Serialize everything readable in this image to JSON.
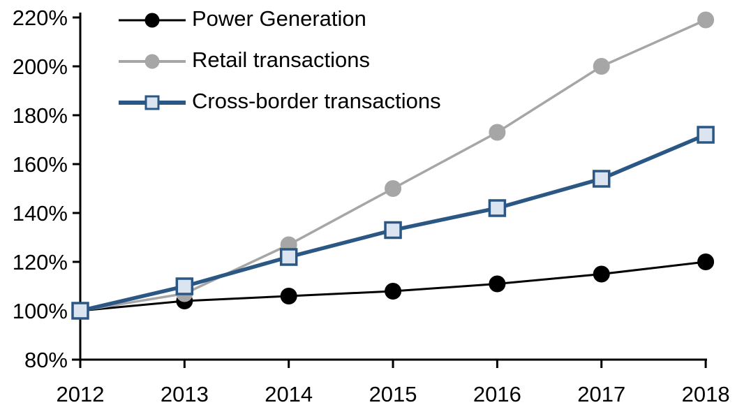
{
  "chart_data": {
    "type": "line",
    "title": "",
    "xlabel": "",
    "ylabel": "",
    "x": [
      2012,
      2013,
      2014,
      2015,
      2016,
      2017,
      2018
    ],
    "x_tick_labels": [
      "2012",
      "2013",
      "2014",
      "2015",
      "2016",
      "2017",
      "2018"
    ],
    "y_tick_labels": [
      "80%",
      "100%",
      "120%",
      "140%",
      "160%",
      "180%",
      "200%",
      "220%"
    ],
    "ylim": [
      80,
      220
    ],
    "y_step": 20,
    "grid": false,
    "legend_position": "top-left",
    "axis_color": "#000000",
    "series": [
      {
        "name": "Power Generation",
        "values": [
          100,
          104,
          106,
          108,
          111,
          115,
          120
        ],
        "color": "#000000",
        "marker": "circle",
        "marker_fill": "#000000",
        "line_width": 3
      },
      {
        "name": "Retail transactions",
        "values": [
          100,
          107,
          127,
          150,
          173,
          200,
          219
        ],
        "color": "#a6a6a6",
        "marker": "circle",
        "marker_fill": "#a6a6a6",
        "line_width": 3.5
      },
      {
        "name": "Cross-border transactions",
        "values": [
          100,
          110,
          122,
          133,
          142,
          154,
          172
        ],
        "color": "#2a5783",
        "marker": "square",
        "marker_fill": "#dbe5f1",
        "line_width": 5.5
      }
    ]
  }
}
